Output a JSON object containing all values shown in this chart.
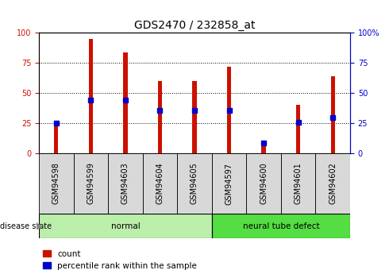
{
  "title": "GDS2470 / 232858_at",
  "samples": [
    "GSM94598",
    "GSM94599",
    "GSM94603",
    "GSM94604",
    "GSM94605",
    "GSM94597",
    "GSM94600",
    "GSM94601",
    "GSM94602"
  ],
  "count_values": [
    26,
    95,
    84,
    60,
    60,
    72,
    11,
    40,
    64
  ],
  "percentile_values": [
    25,
    44,
    44,
    36,
    36,
    36,
    9,
    26,
    30
  ],
  "groups": [
    {
      "label": "normal",
      "indices": [
        0,
        1,
        2,
        3,
        4
      ],
      "color": "#bbeeaa"
    },
    {
      "label": "neural tube defect",
      "indices": [
        5,
        6,
        7,
        8
      ],
      "color": "#55dd44"
    }
  ],
  "ylim": [
    0,
    100
  ],
  "bar_color": "#cc1100",
  "percentile_color": "#0000cc",
  "plot_bg_color": "#ffffff",
  "tick_area_bg": "#d8d8d8",
  "title_fontsize": 10,
  "tick_fontsize": 7,
  "legend_fontsize": 7.5,
  "bar_width": 0.12
}
